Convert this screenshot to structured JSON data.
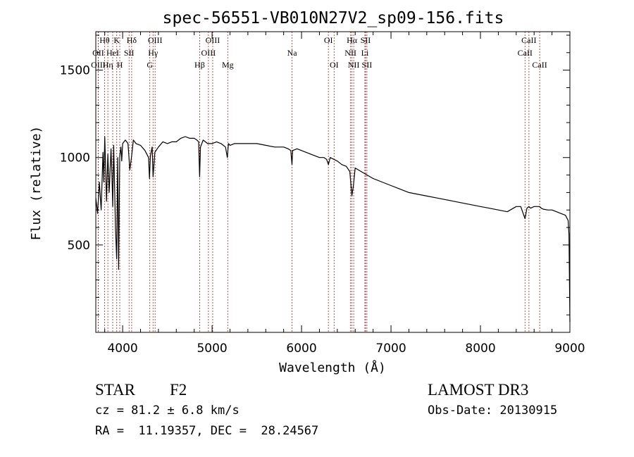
{
  "chart_data": {
    "type": "line",
    "title": "spec-56551-VB010N27V2_sp09-156.fits",
    "xlabel": "Wavelength (Å)",
    "ylabel": "Flux (relative)",
    "xlim": [
      3700,
      9000
    ],
    "ylim": [
      0,
      1720
    ],
    "xticks": [
      4000,
      5000,
      6000,
      7000,
      8000,
      9000
    ],
    "yticks": [
      500,
      1000,
      1500
    ],
    "grid": false,
    "series": [
      {
        "name": "flux",
        "x": [
          3700,
          3720,
          3740,
          3760,
          3780,
          3790,
          3800,
          3820,
          3835,
          3850,
          3870,
          3880,
          3889,
          3900,
          3920,
          3933,
          3945,
          3955,
          3968,
          3980,
          3990,
          4000,
          4030,
          4060,
          4080,
          4101,
          4120,
          4150,
          4200,
          4250,
          4290,
          4300,
          4310,
          4330,
          4340,
          4360,
          4400,
          4450,
          4500,
          4550,
          4600,
          4650,
          4700,
          4750,
          4800,
          4830,
          4850,
          4861,
          4870,
          4900,
          4950,
          5000,
          5050,
          5100,
          5150,
          5170,
          5183,
          5200,
          5250,
          5300,
          5400,
          5500,
          5600,
          5700,
          5800,
          5850,
          5880,
          5893,
          5900,
          5950,
          6000,
          6100,
          6200,
          6250,
          6280,
          6300,
          6320,
          6400,
          6450,
          6500,
          6540,
          6563,
          6580,
          6600,
          6700,
          6800,
          6900,
          7000,
          7100,
          7200,
          7300,
          7400,
          7500,
          7600,
          7700,
          7800,
          7900,
          8000,
          8100,
          8200,
          8300,
          8400,
          8450,
          8498,
          8520,
          8542,
          8560,
          8600,
          8662,
          8680,
          8700,
          8750,
          8800,
          8850,
          8900,
          8950,
          8980,
          8990,
          9000
        ],
        "y": [
          770,
          680,
          860,
          700,
          1030,
          860,
          1120,
          750,
          1020,
          800,
          1050,
          900,
          720,
          1070,
          600,
          420,
          1000,
          360,
          1010,
          1060,
          980,
          1080,
          1100,
          1080,
          930,
          1010,
          1100,
          1080,
          1070,
          1040,
          1000,
          880,
          1010,
          1060,
          890,
          1030,
          1060,
          1090,
          1080,
          1090,
          1090,
          1110,
          1120,
          1110,
          1110,
          1100,
          1090,
          890,
          1060,
          1100,
          1080,
          1080,
          1090,
          1080,
          1060,
          1000,
          1080,
          1070,
          1080,
          1080,
          1080,
          1080,
          1070,
          1060,
          1060,
          1050,
          1040,
          960,
          1040,
          1050,
          1040,
          1020,
          1000,
          1000,
          990,
          960,
          1000,
          980,
          960,
          950,
          920,
          780,
          840,
          940,
          910,
          880,
          860,
          840,
          820,
          800,
          790,
          780,
          770,
          760,
          750,
          740,
          730,
          720,
          710,
          700,
          690,
          720,
          720,
          650,
          710,
          720,
          710,
          720,
          720,
          710,
          705,
          700,
          700,
          690,
          680,
          670,
          640,
          560,
          60
        ]
      }
    ],
    "line_markers": [
      {
        "label": "Hθ",
        "x": 3798,
        "row": 0
      },
      {
        "label": "OII",
        "x": 3727,
        "row": 1
      },
      {
        "label": "OIII",
        "x": 3727,
        "row": 2
      },
      {
        "label": "K",
        "x": 3934,
        "row": 0
      },
      {
        "label": "HeI",
        "x": 3889,
        "row": 1
      },
      {
        "label": "Hη",
        "x": 3835,
        "row": 2
      },
      {
        "label": "H",
        "x": 3968,
        "row": 2
      },
      {
        "label": "Hδ",
        "x": 4101,
        "row": 0
      },
      {
        "label": "SII",
        "x": 4072,
        "row": 1
      },
      {
        "label": "OIII",
        "x": 4363,
        "row": 0
      },
      {
        "label": "Hγ",
        "x": 4340,
        "row": 1
      },
      {
        "label": "G",
        "x": 4304,
        "row": 2
      },
      {
        "label": "OIII",
        "x": 5007,
        "row": 0
      },
      {
        "label": "OIII",
        "x": 4959,
        "row": 1
      },
      {
        "label": "Hβ",
        "x": 4861,
        "row": 2
      },
      {
        "label": "Mg",
        "x": 5175,
        "row": 2
      },
      {
        "label": "Na",
        "x": 5894,
        "row": 1
      },
      {
        "label": "OI",
        "x": 6300,
        "row": 0
      },
      {
        "label": "OI",
        "x": 6364,
        "row": 2
      },
      {
        "label": "Hα",
        "x": 6563,
        "row": 0
      },
      {
        "label": "SII",
        "x": 6716,
        "row": 0
      },
      {
        "label": "NII",
        "x": 6548,
        "row": 1
      },
      {
        "label": "Li",
        "x": 6708,
        "row": 1
      },
      {
        "label": "NII",
        "x": 6583,
        "row": 2
      },
      {
        "label": "SII",
        "x": 6731,
        "row": 2
      },
      {
        "label": "CaII",
        "x": 8542,
        "row": 0
      },
      {
        "label": "CaII",
        "x": 8498,
        "row": 1
      },
      {
        "label": "CaII",
        "x": 8662,
        "row": 2
      }
    ]
  },
  "info": {
    "object_type": "STAR",
    "subclass": "F2",
    "survey": "LAMOST DR3",
    "redshift": "cz = 81.2 ± 6.8 km/s",
    "obs_date": "Obs-Date: 20130915",
    "coords": "RA =  11.19357, DEC =  28.24567"
  },
  "colors": {
    "axis": "#000000",
    "spectrum": "#000000",
    "marker_line": "#b22222"
  }
}
